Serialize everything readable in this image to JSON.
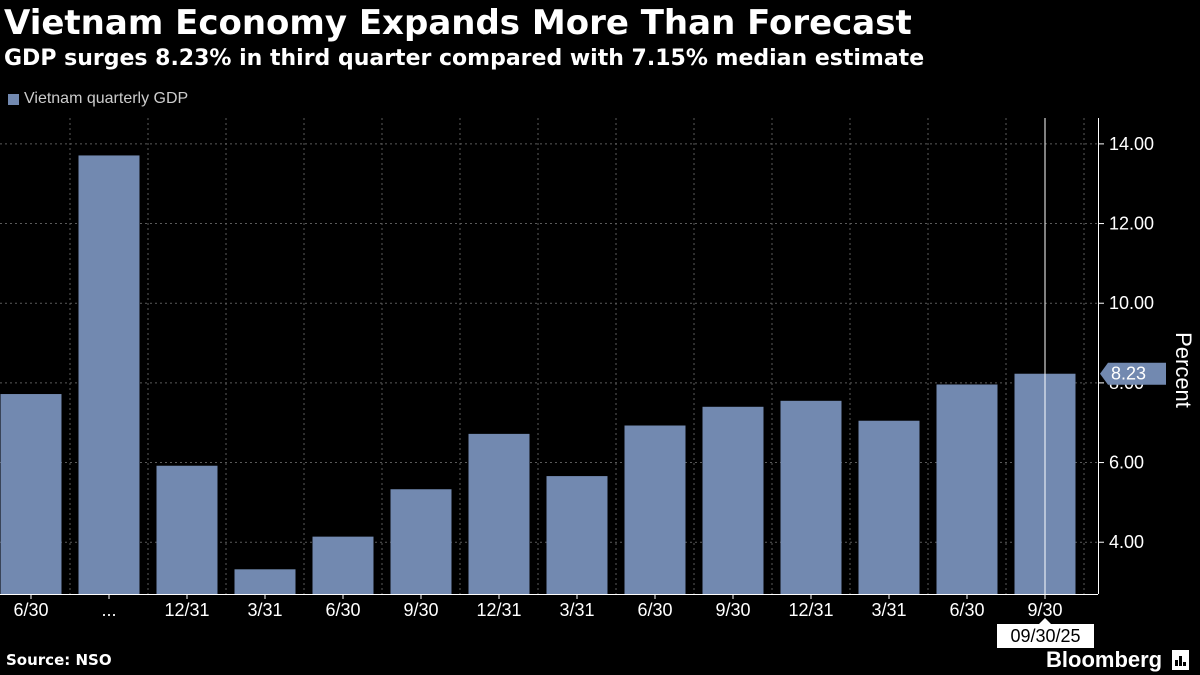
{
  "title": "Vietnam Economy Expands More Than Forecast",
  "subtitle": "GDP surges 8.23% in third quarter compared with 7.15% median estimate",
  "source": "Source: NSO",
  "brand": "Bloomberg",
  "colors": {
    "bar": "#7289b0",
    "background": "#000000",
    "grid": "#5a5a5a",
    "text": "#ffffff",
    "tag": "#7289b0"
  },
  "chart_data": {
    "type": "bar",
    "title": "Vietnam Economy Expands More Than Forecast",
    "subtitle": "GDP surges 8.23% in third quarter compared with 7.15% median estimate",
    "legend": [
      "Vietnam quarterly GDP"
    ],
    "legend_position": "top-left",
    "categories": [
      "6/30",
      "...",
      "12/31",
      "3/31",
      "6/30",
      "9/30",
      "12/31",
      "3/31",
      "6/30",
      "9/30",
      "12/31",
      "3/31",
      "6/30",
      "9/30"
    ],
    "series": [
      {
        "name": "Vietnam quarterly GDP",
        "values": [
          7.72,
          13.71,
          5.92,
          3.32,
          4.14,
          5.33,
          6.72,
          5.66,
          6.93,
          7.4,
          7.55,
          7.05,
          7.96,
          8.23
        ]
      }
    ],
    "ylabel": "Percent",
    "y_axis_side": "right",
    "ylim": [
      2.7,
      14.65
    ],
    "yticks": [
      4.0,
      6.0,
      8.0,
      10.0,
      12.0,
      14.0
    ],
    "ytick_labels": [
      "4.00",
      "6.00",
      "8.00",
      "10.00",
      "12.00",
      "14.00"
    ],
    "grid": true,
    "last_value_label": "8.23",
    "cursor_date_label": "09/30/25"
  }
}
